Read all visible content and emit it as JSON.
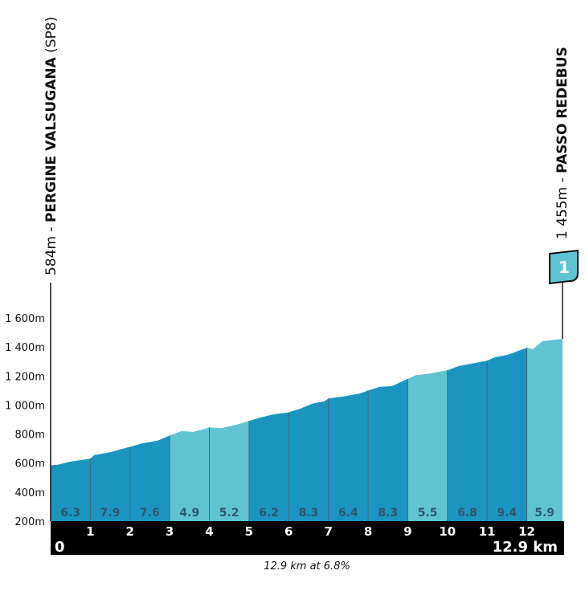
{
  "start": {
    "altitude": "584m",
    "separator": " - ",
    "name": "PERGINE VALSUGANA",
    "suffix": " (SP8)"
  },
  "finish": {
    "altitude": "1 455m",
    "separator": " - ",
    "name": "PASSO REDEBUS",
    "flag_number": "1"
  },
  "summary": "12.9 km at 6.8%",
  "colors": {
    "dark": "#1b95c0",
    "light": "#5fc3d2",
    "divider": "#3f6b7a",
    "bar": "#000000",
    "grad_text": "#2c5a6e",
    "flag": "#5fc3d2"
  },
  "chart_data": {
    "type": "area",
    "title": "",
    "xlabel": "km",
    "ylabel": "m",
    "ylim": [
      200,
      1700
    ],
    "xlim": [
      0,
      12.9
    ],
    "yticks": [
      {
        "value": 200,
        "label": "200m"
      },
      {
        "value": 400,
        "label": "400m"
      },
      {
        "value": 600,
        "label": "600m"
      },
      {
        "value": 800,
        "label": "800m"
      },
      {
        "value": 1000,
        "label": "1 000m"
      },
      {
        "value": 1200,
        "label": "1 200m"
      },
      {
        "value": 1400,
        "label": "1 400m"
      },
      {
        "value": 1600,
        "label": "1 600m"
      }
    ],
    "xticks": [
      "1",
      "2",
      "3",
      "4",
      "5",
      "6",
      "7",
      "8",
      "9",
      "10",
      "11",
      "12"
    ],
    "x_start_label": "0",
    "x_end_label": "12.9 km",
    "segments": [
      {
        "from": 0,
        "to": 1,
        "gradient": "6.3",
        "shade": "dark"
      },
      {
        "from": 1,
        "to": 2,
        "gradient": "7.9",
        "shade": "dark"
      },
      {
        "from": 2,
        "to": 3,
        "gradient": "7.6",
        "shade": "dark"
      },
      {
        "from": 3,
        "to": 4,
        "gradient": "4.9",
        "shade": "light"
      },
      {
        "from": 4,
        "to": 5,
        "gradient": "5.2",
        "shade": "light"
      },
      {
        "from": 5,
        "to": 6,
        "gradient": "6.2",
        "shade": "dark"
      },
      {
        "from": 6,
        "to": 7,
        "gradient": "8.3",
        "shade": "dark"
      },
      {
        "from": 7,
        "to": 8,
        "gradient": "6.4",
        "shade": "dark"
      },
      {
        "from": 8,
        "to": 9,
        "gradient": "8.3",
        "shade": "dark"
      },
      {
        "from": 9,
        "to": 10,
        "gradient": "5.5",
        "shade": "light"
      },
      {
        "from": 10,
        "to": 11,
        "gradient": "6.8",
        "shade": "dark"
      },
      {
        "from": 11,
        "to": 12,
        "gradient": "9.4",
        "shade": "dark"
      },
      {
        "from": 12,
        "to": 12.9,
        "gradient": "5.9",
        "shade": "light"
      }
    ],
    "profile": [
      [
        0,
        584
      ],
      [
        0.2,
        590
      ],
      [
        0.5,
        610
      ],
      [
        1.0,
        630
      ],
      [
        1.1,
        655
      ],
      [
        1.5,
        675
      ],
      [
        1.9,
        705
      ],
      [
        2.0,
        712
      ],
      [
        2.3,
        735
      ],
      [
        2.7,
        755
      ],
      [
        3.0,
        790
      ],
      [
        3.3,
        820
      ],
      [
        3.6,
        815
      ],
      [
        4.0,
        845
      ],
      [
        4.3,
        840
      ],
      [
        4.7,
        865
      ],
      [
        5.0,
        890
      ],
      [
        5.3,
        915
      ],
      [
        5.6,
        935
      ],
      [
        6.0,
        950
      ],
      [
        6.3,
        975
      ],
      [
        6.6,
        1010
      ],
      [
        6.9,
        1025
      ],
      [
        7.0,
        1045
      ],
      [
        7.4,
        1060
      ],
      [
        7.8,
        1080
      ],
      [
        8.0,
        1100
      ],
      [
        8.3,
        1125
      ],
      [
        8.6,
        1130
      ],
      [
        9.0,
        1180
      ],
      [
        9.2,
        1205
      ],
      [
        9.5,
        1215
      ],
      [
        10.0,
        1240
      ],
      [
        10.3,
        1270
      ],
      [
        10.7,
        1290
      ],
      [
        11.0,
        1305
      ],
      [
        11.2,
        1330
      ],
      [
        11.5,
        1345
      ],
      [
        11.8,
        1375
      ],
      [
        12.0,
        1395
      ],
      [
        12.15,
        1385
      ],
      [
        12.4,
        1440
      ],
      [
        12.7,
        1450
      ],
      [
        12.9,
        1455
      ]
    ]
  }
}
